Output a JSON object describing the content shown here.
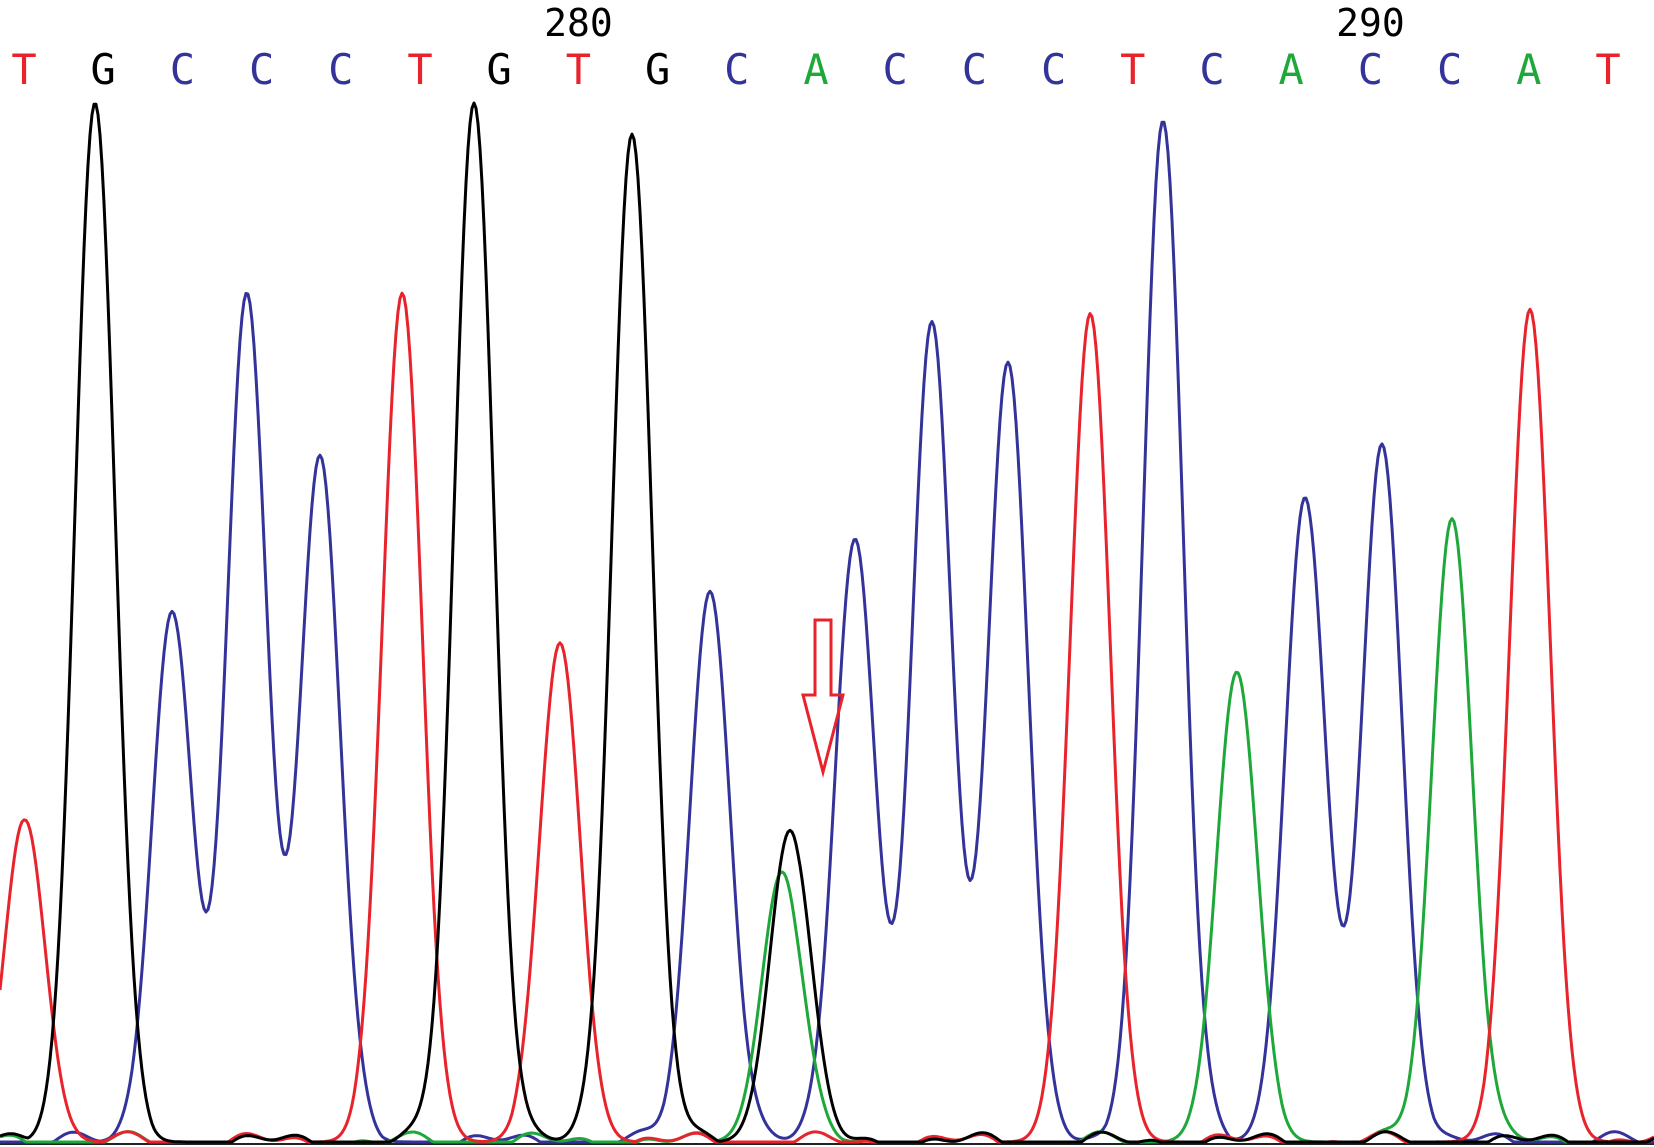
{
  "chart_data": {
    "type": "line",
    "title": "",
    "xlabel": "",
    "ylabel": "",
    "x_range": [
      276,
      296
    ],
    "position_labels": [
      {
        "label": "280",
        "position": 283
      },
      {
        "label": "290",
        "position": 293
      }
    ],
    "bases": [
      {
        "base": "T",
        "position": 276
      },
      {
        "base": "G",
        "position": 277
      },
      {
        "base": "C",
        "position": 278
      },
      {
        "base": "C",
        "position": 279
      },
      {
        "base": "C",
        "position": 280
      },
      {
        "base": "T",
        "position": 281
      },
      {
        "base": "G",
        "position": 282
      },
      {
        "base": "T",
        "position": 283
      },
      {
        "base": "G",
        "position": 284
      },
      {
        "base": "C",
        "position": 285
      },
      {
        "base": "A",
        "position": 286
      },
      {
        "base": "C",
        "position": 287
      },
      {
        "base": "C",
        "position": 288
      },
      {
        "base": "C",
        "position": 289
      },
      {
        "base": "T",
        "position": 290
      },
      {
        "base": "C",
        "position": 291
      },
      {
        "base": "A",
        "position": 292
      },
      {
        "base": "C",
        "position": 293
      },
      {
        "base": "C",
        "position": 294
      },
      {
        "base": "A",
        "position": 295
      },
      {
        "base": "T",
        "position": 296
      }
    ],
    "series": [
      {
        "base": "T",
        "color": "#e8232b",
        "peaks": [
          {
            "x": 25,
            "h": 0.31
          },
          {
            "x": 402,
            "h": 0.81
          },
          {
            "x": 560,
            "h": 0.48
          },
          {
            "x": 1090,
            "h": 0.79
          },
          {
            "x": 1530,
            "h": 0.8
          }
        ]
      },
      {
        "base": "G",
        "color": "#000000",
        "peaks": [
          {
            "x": 95,
            "h": 1.0,
            "cap": true
          },
          {
            "x": 474,
            "h": 1.0,
            "cap": true
          },
          {
            "x": 632,
            "h": 0.97
          },
          {
            "x": 790,
            "h": 0.3
          }
        ]
      },
      {
        "base": "C",
        "color": "#33339a",
        "peaks": [
          {
            "x": 172,
            "h": 0.51
          },
          {
            "x": 247,
            "h": 0.81
          },
          {
            "x": 320,
            "h": 0.66
          },
          {
            "x": 710,
            "h": 0.53
          },
          {
            "x": 855,
            "h": 0.58
          },
          {
            "x": 932,
            "h": 0.78
          },
          {
            "x": 1008,
            "h": 0.75
          },
          {
            "x": 1163,
            "h": 0.98
          },
          {
            "x": 1305,
            "h": 0.62
          },
          {
            "x": 1382,
            "h": 0.67
          }
        ]
      },
      {
        "base": "A",
        "color": "#1fa83a",
        "peaks": [
          {
            "x": 782,
            "h": 0.26
          },
          {
            "x": 1237,
            "h": 0.45
          },
          {
            "x": 1452,
            "h": 0.6
          }
        ]
      }
    ],
    "annotation": {
      "type": "arrow",
      "at_position": 286,
      "color": "#e8232b",
      "meaning": "heterozygous site"
    },
    "grid": false
  }
}
